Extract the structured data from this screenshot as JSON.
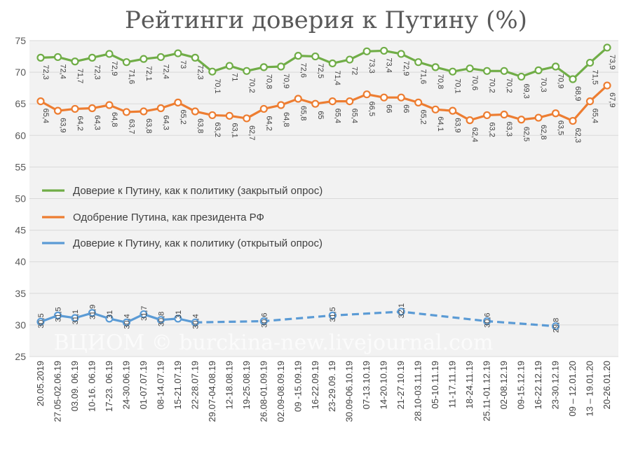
{
  "chart_data": {
    "type": "line",
    "title": "Рейтинги доверия к Путину (%)",
    "watermark": "ВЦИОМ © burckina-new.livejournal.com",
    "ylim": [
      25,
      75
    ],
    "yticks": [
      25,
      30,
      35,
      40,
      45,
      50,
      55,
      60,
      65,
      70,
      75
    ],
    "grid": true,
    "legend_position": "middle-left",
    "x": [
      "20.05.2019",
      "27.05-02.06.19",
      "03.09. 06.19",
      "10-16. 06.19",
      "17-23. 06.19",
      "24-30.06.19",
      "01-07.07.19",
      "08-14.07.19",
      "15-21.07.19",
      "22-28.07.19",
      "29.07-04.08.19",
      "12-18.08.19",
      "19-25.08.19",
      "26.08-01.09.19",
      "02.09-08.09.19",
      "09 -15.09.19",
      "16-22.09.19",
      "23-29.09. 19",
      "30.09-06.10.19",
      "07-13.10.19",
      "14-20.10.19",
      "21-27.10.19",
      "28.10-03.11.19",
      "05-10.11.19",
      "11-17.11.19",
      "18-24.11.19",
      "25.11-01.12.19",
      "02-08.12.19",
      "09-15.12.19",
      "16-22.12.19",
      "23-30.12.19",
      "09 – 12.01.20",
      "13 – 19.01.20",
      "20-26.01.20"
    ],
    "series": [
      {
        "name": "Доверие к Путину, как к политику (закрытый опрос)",
        "color": "#70ad47",
        "style": "solid",
        "values": [
          72.3,
          72.4,
          71.7,
          72.3,
          72.9,
          71.6,
          72.1,
          72.4,
          73,
          72.3,
          70.1,
          71,
          70.2,
          70.8,
          70.9,
          72.6,
          72.5,
          71.4,
          72,
          73.3,
          73.4,
          72.9,
          71.6,
          70.8,
          70.1,
          70.6,
          70.2,
          70.2,
          69.3,
          70.3,
          70.9,
          68.9,
          71.5,
          73.9
        ],
        "labels": [
          "72,3",
          "72,4",
          "71,7",
          "72,3",
          "72,9",
          "71,6",
          "72,1",
          "72,4",
          "73",
          "72,3",
          "70,1",
          "71",
          "70,2",
          "70,8",
          "70,9",
          "72,6",
          "72,5",
          "71,4",
          "72",
          "73,3",
          "73,4",
          "72,9",
          "71,6",
          "70,8",
          "70,1",
          "70,6",
          "70,2",
          "70,2",
          "69,3",
          "70,3",
          "70,9",
          "68,9",
          "71,5",
          "73,9"
        ]
      },
      {
        "name": "Одобрение Путина, как президента РФ",
        "color": "#ed7d31",
        "style": "solid",
        "values": [
          65.4,
          63.9,
          64.2,
          64.3,
          64.8,
          63.7,
          63.8,
          64.3,
          65.2,
          63.8,
          63.2,
          63.1,
          62.7,
          64.2,
          64.8,
          65.8,
          65,
          65.4,
          65.4,
          66.5,
          66,
          66,
          65.2,
          64.1,
          63.9,
          62.4,
          63.2,
          63.3,
          62.5,
          62.8,
          63.5,
          62.3,
          65.4,
          67.9
        ],
        "labels": [
          "65,4",
          "63,9",
          "64,2",
          "64,3",
          "64,8",
          "63,7",
          "63,8",
          "64,3",
          "65,2",
          "63,8",
          "63,2",
          "63,1",
          "62,7",
          "64,2",
          "64,8",
          "65,8",
          "65",
          "65,4",
          "65,4",
          "66,5",
          "66",
          "66",
          "65,2",
          "64,1",
          "63,9",
          "62,4",
          "63,2",
          "63,3",
          "62,5",
          "62,8",
          "63,5",
          "62,3",
          "65,4",
          "67,9"
        ]
      },
      {
        "name": "Доверие к Путину, как к политику (открытый опрос)",
        "color": "#5b9bd5",
        "style": "solid-then-dashed",
        "points": [
          {
            "i": 0,
            "value": 30.5,
            "label": "30,5"
          },
          {
            "i": 1,
            "value": 31.5,
            "label": "31,5"
          },
          {
            "i": 2,
            "value": 31.1,
            "label": "31,1"
          },
          {
            "i": 3,
            "value": 31.9,
            "label": "31,9"
          },
          {
            "i": 4,
            "value": 31,
            "label": "31"
          },
          {
            "i": 5,
            "value": 30.4,
            "label": "30,4"
          },
          {
            "i": 6,
            "value": 31.7,
            "label": "31,7"
          },
          {
            "i": 7,
            "value": 30.8,
            "label": "30,8"
          },
          {
            "i": 8,
            "value": 31,
            "label": "31"
          },
          {
            "i": 9,
            "value": 30.4,
            "label": "30,4"
          },
          {
            "i": 13,
            "value": 30.6,
            "label": "30,6"
          },
          {
            "i": 17,
            "value": 31.5,
            "label": "31,5"
          },
          {
            "i": 21,
            "value": 32.1,
            "label": "32,1"
          },
          {
            "i": 26,
            "value": 30.6,
            "label": "30,6"
          },
          {
            "i": 30,
            "value": 29.8,
            "label": "29,8"
          }
        ]
      }
    ]
  }
}
